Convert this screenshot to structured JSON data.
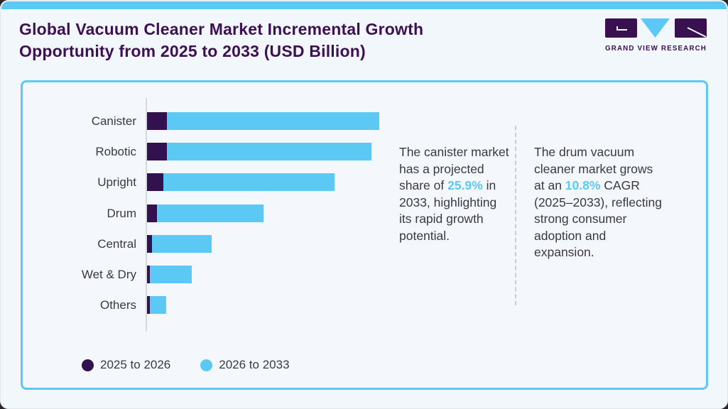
{
  "header": {
    "title": "Global Vacuum Cleaner Market Incremental Growth Opportunity from 2025 to 2033 (USD Billion)",
    "logo_caption": "GRAND VIEW RESEARCH"
  },
  "colors": {
    "accent_blue": "#5bc8f5",
    "dark_purple": "#33114e",
    "title_purple": "#3d1054",
    "body_text": "#3a3845",
    "card_background": "#f2f7fb",
    "panel_background": "#f4f8fd",
    "axis_gray": "#d5dae0"
  },
  "chart_data": {
    "type": "bar",
    "orientation": "horizontal",
    "stacked": true,
    "title": "Global Vacuum Cleaner Market Incremental Growth Opportunity from 2025 to 2033 (USD Billion)",
    "xlabel": "",
    "ylabel": "",
    "categories": [
      "Canister",
      "Robotic",
      "Upright",
      "Drum",
      "Central",
      "Wet & Dry",
      "Others"
    ],
    "series": [
      {
        "name": "2025 to 2026",
        "color": "#33114e",
        "values": [
          8.6,
          8.6,
          7.0,
          4.3,
          2.2,
          1.2,
          1.2
        ]
      },
      {
        "name": "2026 to 2033",
        "color": "#5cc9f5",
        "values": [
          91.4,
          88.1,
          73.7,
          45.9,
          25.7,
          18.0,
          7.0
        ]
      }
    ],
    "value_axis": {
      "tick_labels_visible": false,
      "range": [
        0,
        100
      ],
      "note": "relative bar lengths; numeric axis not shown in figure"
    },
    "grid": false,
    "legend_position": "bottom-left"
  },
  "annotations": [
    {
      "parts": [
        {
          "text": "The canister market has a projected share of ",
          "highlight": false
        },
        {
          "text": "25.9%",
          "highlight": true
        },
        {
          "text": " in 2033, highlighting its rapid growth potential.",
          "highlight": false
        }
      ]
    },
    {
      "parts": [
        {
          "text": "The drum vacuum cleaner market grows at an ",
          "highlight": false
        },
        {
          "text": "10.8%",
          "highlight": true
        },
        {
          "text": " CAGR (2025–2033), reflecting strong consumer adoption and expansion.",
          "highlight": false
        }
      ]
    }
  ]
}
